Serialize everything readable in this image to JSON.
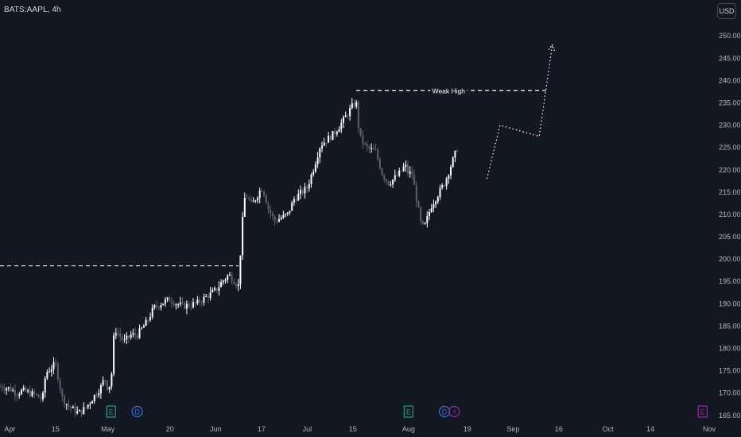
{
  "header": {
    "symbol": "BATS:AAPL, 4h",
    "currency_button": "USD"
  },
  "colors": {
    "background": "#131722",
    "candle_up": "#ffffff",
    "candle_down": "#5d606b",
    "axis_text": "#b2b5be",
    "event_earnings": "#1f9d8a",
    "event_dividend": "#3c6fd6",
    "event_split": "#9c27b0"
  },
  "chart_data": {
    "type": "candlestick",
    "y_axis": {
      "ticks": [
        165,
        170,
        175,
        180,
        185,
        190,
        195,
        200,
        205,
        210,
        215,
        220,
        225,
        230,
        235,
        240,
        245,
        250
      ],
      "ylim": [
        163,
        252
      ],
      "labels": [
        "165.00",
        "170.00",
        "175.00",
        "180.00",
        "185.00",
        "190.00",
        "195.00",
        "200.00",
        "205.00",
        "210.00",
        "215.00",
        "220.00",
        "225.00",
        "230.00",
        "235.00",
        "240.00",
        "245.00",
        "250.00"
      ]
    },
    "x_axis": {
      "start": "2024-03-29",
      "end": "2024-11-01",
      "ticks": [
        {
          "date": "2024-04-01",
          "label": "Apr"
        },
        {
          "date": "2024-04-15",
          "label": "15"
        },
        {
          "date": "2024-05-01",
          "label": "May"
        },
        {
          "date": "2024-05-20",
          "label": "20"
        },
        {
          "date": "2024-06-03",
          "label": "Jun"
        },
        {
          "date": "2024-06-17",
          "label": "17"
        },
        {
          "date": "2024-07-01",
          "label": "Jul"
        },
        {
          "date": "2024-07-15",
          "label": "15"
        },
        {
          "date": "2024-08-01",
          "label": "Aug"
        },
        {
          "date": "2024-08-19",
          "label": "19"
        },
        {
          "date": "2024-09-02",
          "label": "Sep"
        },
        {
          "date": "2024-09-16",
          "label": "16"
        },
        {
          "date": "2024-10-01",
          "label": "Oct"
        },
        {
          "date": "2024-10-14",
          "label": "14"
        },
        {
          "date": "2024-11-01",
          "label": "Nov"
        }
      ]
    },
    "price_path": [
      [
        "2024-03-29",
        171.5
      ],
      [
        "2024-04-01",
        171
      ],
      [
        "2024-04-03",
        170
      ],
      [
        "2024-04-05",
        170.5
      ],
      [
        "2024-04-09",
        169.5
      ],
      [
        "2024-04-11",
        168.5
      ],
      [
        "2024-04-12",
        174.5
      ],
      [
        "2024-04-15",
        176.5
      ],
      [
        "2024-04-17",
        169
      ],
      [
        "2024-04-19",
        167
      ],
      [
        "2024-04-22",
        165.5
      ],
      [
        "2024-04-24",
        166.5
      ],
      [
        "2024-04-26",
        168.5
      ],
      [
        "2024-04-29",
        171.5
      ],
      [
        "2024-04-30",
        173.5
      ],
      [
        "2024-05-01",
        171
      ],
      [
        "2024-05-02",
        172.5
      ],
      [
        "2024-05-03",
        184.5
      ],
      [
        "2024-05-06",
        181.5
      ],
      [
        "2024-05-08",
        183
      ],
      [
        "2024-05-10",
        183
      ],
      [
        "2024-05-13",
        186
      ],
      [
        "2024-05-15",
        189
      ],
      [
        "2024-05-17",
        190
      ],
      [
        "2024-05-20",
        191
      ],
      [
        "2024-05-22",
        190
      ],
      [
        "2024-05-24",
        189.5
      ],
      [
        "2024-05-28",
        190
      ],
      [
        "2024-05-30",
        191
      ],
      [
        "2024-06-03",
        193
      ],
      [
        "2024-06-05",
        195
      ],
      [
        "2024-06-07",
        196.5
      ],
      [
        "2024-06-10",
        194
      ],
      [
        "2024-06-11",
        207
      ],
      [
        "2024-06-12",
        214.5
      ],
      [
        "2024-06-13",
        213.5
      ],
      [
        "2024-06-14",
        212
      ],
      [
        "2024-06-17",
        216
      ],
      [
        "2024-06-18",
        214.5
      ],
      [
        "2024-06-19",
        211.5
      ],
      [
        "2024-06-21",
        208.5
      ],
      [
        "2024-06-25",
        210
      ],
      [
        "2024-06-27",
        213.5
      ],
      [
        "2024-07-01",
        216
      ],
      [
        "2024-07-03",
        220.5
      ],
      [
        "2024-07-05",
        225.5
      ],
      [
        "2024-07-09",
        228
      ],
      [
        "2024-07-11",
        230
      ],
      [
        "2024-07-12",
        231
      ],
      [
        "2024-07-15",
        234.5
      ],
      [
        "2024-07-16",
        235
      ],
      [
        "2024-07-17",
        227.5
      ],
      [
        "2024-07-19",
        225
      ],
      [
        "2024-07-22",
        224
      ],
      [
        "2024-07-24",
        219
      ],
      [
        "2024-07-26",
        217
      ],
      [
        "2024-07-29",
        219
      ],
      [
        "2024-07-31",
        221
      ],
      [
        "2024-08-01",
        219
      ],
      [
        "2024-08-02",
        219.5
      ],
      [
        "2024-08-05",
        207
      ],
      [
        "2024-08-06",
        207.5
      ],
      [
        "2024-08-08",
        212
      ],
      [
        "2024-08-12",
        217
      ],
      [
        "2024-08-14",
        221
      ],
      [
        "2024-08-16",
        225
      ]
    ],
    "annotations": [
      {
        "type": "horizontal_line",
        "price": 198.5,
        "from": "2024-03-29",
        "to": "2024-06-10",
        "style": "dashed",
        "label": ""
      },
      {
        "type": "horizontal_line",
        "price": 237.8,
        "from": "2024-07-16",
        "to": "2024-09-12",
        "style": "dashed",
        "label": "Weak High"
      },
      {
        "type": "projection_path",
        "style": "dotted",
        "points": [
          [
            "2024-08-25",
            218
          ],
          [
            "2024-08-29",
            230
          ],
          [
            "2024-09-10",
            227.5
          ],
          [
            "2024-09-14",
            248
          ]
        ]
      }
    ],
    "events": [
      {
        "date": "2024-05-02",
        "type": "earnings",
        "label": "E"
      },
      {
        "date": "2024-05-10",
        "type": "dividend",
        "label": "D"
      },
      {
        "date": "2024-08-01",
        "type": "earnings",
        "label": "E"
      },
      {
        "date": "2024-08-12",
        "type": "dividend",
        "label": "D"
      },
      {
        "date": "2024-08-15",
        "type": "split",
        "label": "⚡"
      },
      {
        "date": "2024-10-30",
        "type": "earnings",
        "label": "E"
      }
    ]
  }
}
